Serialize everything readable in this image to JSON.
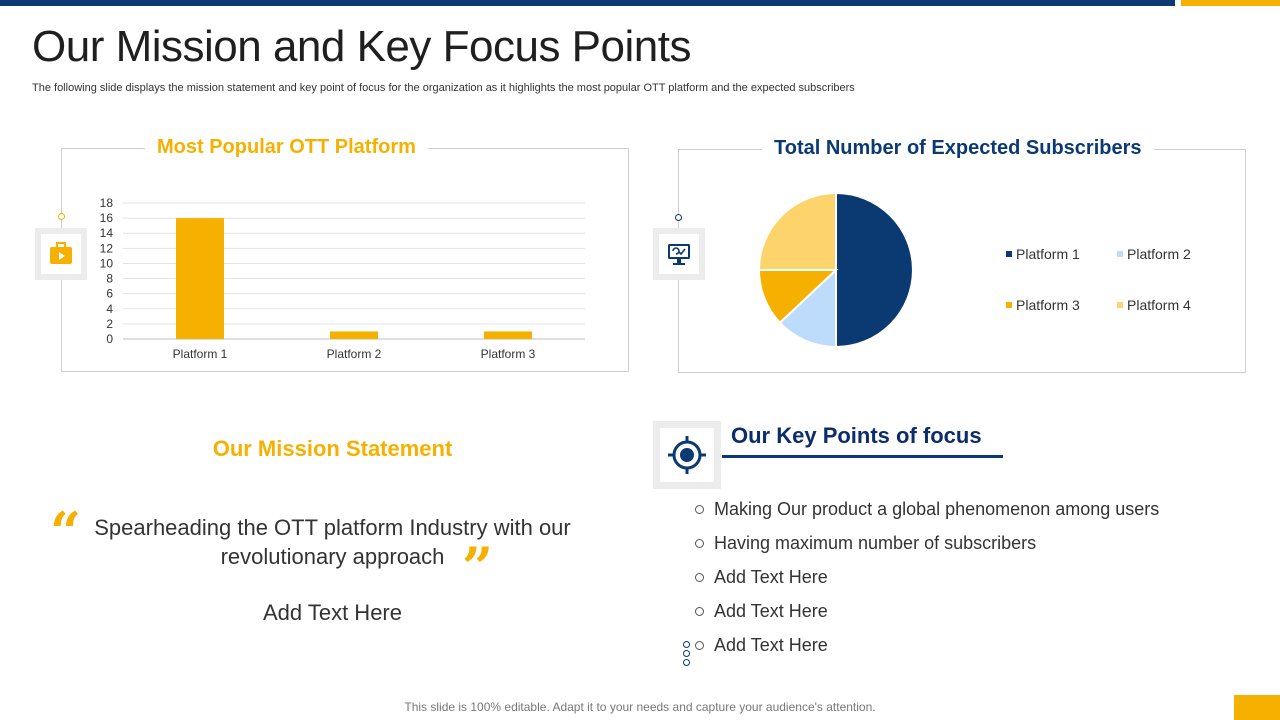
{
  "header": {
    "title": "Our Mission and Key Focus Points",
    "subtitle": "The following slide displays the mission statement and key point of focus for the organization as it highlights the most popular OTT platform and the expected subscribers"
  },
  "colors": {
    "navy": "#0b3a72",
    "gold": "#f6b100",
    "light_blue": "#bddcfb",
    "light_gold": "#fdd36b"
  },
  "left_panel": {
    "title": "Most Popular OTT Platform",
    "icon": "tv-icon"
  },
  "right_panel": {
    "title": "Total Number of Expected Subscribers",
    "icon": "monitor-icon"
  },
  "chart_data": [
    {
      "type": "bar",
      "categories": [
        "Platform 1",
        "Platform 2",
        "Platform 3"
      ],
      "values": [
        16,
        1,
        1
      ],
      "ylim": [
        0,
        18
      ],
      "yticks": [
        0,
        2,
        4,
        6,
        8,
        10,
        12,
        14,
        16,
        18
      ],
      "grid": true,
      "color": "#f6b100"
    },
    {
      "type": "pie",
      "labels": [
        "Platform 1",
        "Platform 2",
        "Platform 3",
        "Platform 4"
      ],
      "values": [
        50,
        13,
        12,
        25
      ],
      "colors": [
        "#0b3a72",
        "#bddcfb",
        "#f6b100",
        "#fdd36b"
      ],
      "legend": "right"
    }
  ],
  "mission": {
    "title": "Our Mission Statement",
    "open_quote": "“",
    "close_quote": "”",
    "line1": "Spearheading the OTT platform Industry with our",
    "line2": "revolutionary approach",
    "add_text": "Add Text Here"
  },
  "focus": {
    "title": "Our Key Points of focus",
    "icon": "target-icon",
    "items": [
      "Making Our product a global phenomenon among users",
      "Having maximum number of subscribers",
      "Add Text Here",
      "Add Text Here",
      "Add Text Here"
    ]
  },
  "footer": {
    "text": "This slide is 100% editable. Adapt it to your needs and capture your audience's attention."
  }
}
